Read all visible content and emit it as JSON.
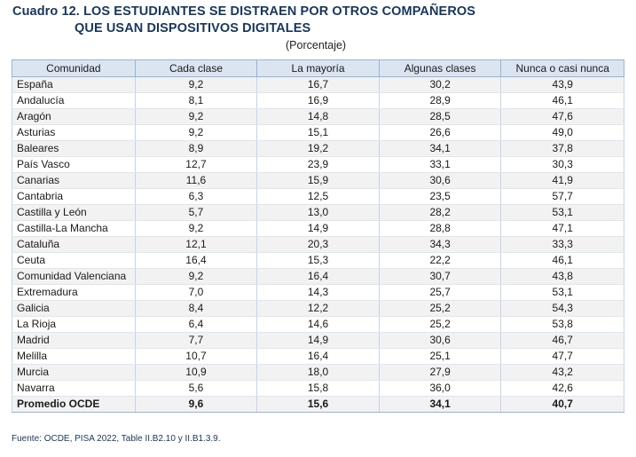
{
  "title": {
    "line1": "Cuadro 12. LOS ESTUDIANTES SE DISTRAEN POR OTROS COMPAÑEROS",
    "line2": "QUE USAN DISPOSITIVOS DIGITALES"
  },
  "subtitle": "(Porcentaje)",
  "table": {
    "headers": [
      "Comunidad",
      "Cada clase",
      "La mayoría",
      "Algunas clases",
      "Nunca o casi nunca"
    ],
    "rows": [
      [
        "España",
        "9,2",
        "16,7",
        "30,2",
        "43,9"
      ],
      [
        "Andalucía",
        "8,1",
        "16,9",
        "28,9",
        "46,1"
      ],
      [
        "Aragón",
        "9,2",
        "14,8",
        "28,5",
        "47,6"
      ],
      [
        "Asturias",
        "9,2",
        "15,1",
        "26,6",
        "49,0"
      ],
      [
        "Baleares",
        "8,9",
        "19,2",
        "34,1",
        "37,8"
      ],
      [
        "País Vasco",
        "12,7",
        "23,9",
        "33,1",
        "30,3"
      ],
      [
        "Canarias",
        "11,6",
        "15,9",
        "30,6",
        "41,9"
      ],
      [
        "Cantabria",
        "6,3",
        "12,5",
        "23,5",
        "57,7"
      ],
      [
        "Castilla y León",
        "5,7",
        "13,0",
        "28,2",
        "53,1"
      ],
      [
        "Castilla-La Mancha",
        "9,2",
        "14,9",
        "28,8",
        "47,1"
      ],
      [
        "Cataluña",
        "12,1",
        "20,3",
        "34,3",
        "33,3"
      ],
      [
        "Ceuta",
        "16,4",
        "15,3",
        "22,2",
        "46,1"
      ],
      [
        "Comunidad Valenciana",
        "9,2",
        "16,4",
        "30,7",
        "43,8"
      ],
      [
        "Extremadura",
        "7,0",
        "14,3",
        "25,7",
        "53,1"
      ],
      [
        "Galicia",
        "8,4",
        "12,2",
        "25,2",
        "54,3"
      ],
      [
        "La Rioja",
        "6,4",
        "14,6",
        "25,2",
        "53,8"
      ],
      [
        "Madrid",
        "7,7",
        "14,9",
        "30,6",
        "46,7"
      ],
      [
        "Melilla",
        "10,7",
        "16,4",
        "25,1",
        "47,7"
      ],
      [
        "Murcia",
        "10,9",
        "18,0",
        "27,9",
        "43,2"
      ],
      [
        "Navarra",
        "5,6",
        "15,8",
        "36,0",
        "42,6"
      ]
    ],
    "total": [
      "Promedio OCDE",
      "9,6",
      "15,6",
      "34,1",
      "40,7"
    ]
  },
  "source": "Fuente: OCDE, PISA 2022, Table II.B2.10 y II.B1.3.9.",
  "colors": {
    "title": "#17365d",
    "header_bg": "#dbe5f1",
    "stripe_bg": "#f2f2f2",
    "border": "#95b3d7"
  }
}
